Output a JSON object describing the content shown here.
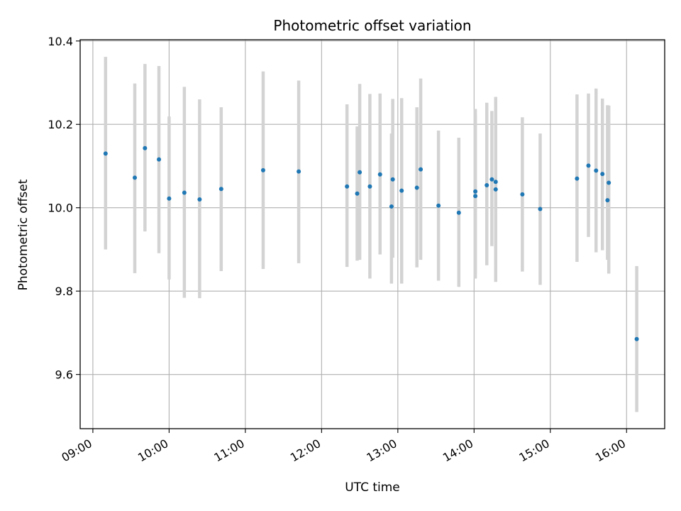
{
  "chart_data": {
    "type": "scatter",
    "title": "Photometric offset variation",
    "xlabel": "UTC time",
    "ylabel": "Photometric offset",
    "xlim": [
      "08:50",
      "16:30"
    ],
    "ylim": [
      9.47,
      10.403
    ],
    "grid": true,
    "x_ticks": [
      "09:00",
      "10:00",
      "11:00",
      "12:00",
      "13:00",
      "14:00",
      "15:00",
      "16:00"
    ],
    "y_ticks": [
      9.6,
      9.8,
      10.0,
      10.2,
      10.4
    ],
    "y_tick_labels": [
      "9.6",
      "9.8",
      "10.0",
      "10.2",
      "10.4"
    ],
    "marker_color": "#1f77b4",
    "errorbar_color": "#d3d3d3",
    "points": [
      {
        "t": "09:10",
        "y": 10.13,
        "lo": 9.9,
        "hi": 10.362
      },
      {
        "t": "09:33",
        "y": 10.072,
        "lo": 9.843,
        "hi": 10.298
      },
      {
        "t": "09:41",
        "y": 10.143,
        "lo": 9.943,
        "hi": 10.345
      },
      {
        "t": "09:52",
        "y": 10.116,
        "lo": 9.891,
        "hi": 10.34
      },
      {
        "t": "10:00",
        "y": 10.022,
        "lo": 9.828,
        "hi": 10.219
      },
      {
        "t": "10:12",
        "y": 10.036,
        "lo": 9.784,
        "hi": 10.29
      },
      {
        "t": "10:24",
        "y": 10.02,
        "lo": 9.783,
        "hi": 10.26
      },
      {
        "t": "10:41",
        "y": 10.045,
        "lo": 9.848,
        "hi": 10.241
      },
      {
        "t": "11:14",
        "y": 10.09,
        "lo": 9.853,
        "hi": 10.327
      },
      {
        "t": "11:42",
        "y": 10.087,
        "lo": 9.867,
        "hi": 10.305
      },
      {
        "t": "12:20",
        "y": 10.051,
        "lo": 9.858,
        "hi": 10.248
      },
      {
        "t": "12:28",
        "y": 10.034,
        "lo": 9.873,
        "hi": 10.195
      },
      {
        "t": "12:30",
        "y": 10.085,
        "lo": 9.875,
        "hi": 10.297
      },
      {
        "t": "12:38",
        "y": 10.051,
        "lo": 9.83,
        "hi": 10.273
      },
      {
        "t": "12:46",
        "y": 10.08,
        "lo": 9.888,
        "hi": 10.274
      },
      {
        "t": "12:55",
        "y": 10.003,
        "lo": 9.818,
        "hi": 10.178
      },
      {
        "t": "12:56",
        "y": 10.068,
        "lo": 9.88,
        "hi": 10.261
      },
      {
        "t": "13:03",
        "y": 10.041,
        "lo": 9.818,
        "hi": 10.263
      },
      {
        "t": "13:15",
        "y": 10.048,
        "lo": 9.857,
        "hi": 10.241
      },
      {
        "t": "13:18",
        "y": 10.092,
        "lo": 9.875,
        "hi": 10.31
      },
      {
        "t": "13:32",
        "y": 10.005,
        "lo": 9.825,
        "hi": 10.185
      },
      {
        "t": "13:48",
        "y": 9.988,
        "lo": 9.81,
        "hi": 10.168
      },
      {
        "t": "14:01",
        "y": 10.039,
        "lo": 9.842,
        "hi": 10.237
      },
      {
        "t": "14:01",
        "y": 10.028,
        "lo": 9.83,
        "hi": 10.222
      },
      {
        "t": "14:10",
        "y": 10.054,
        "lo": 9.862,
        "hi": 10.252
      },
      {
        "t": "14:14",
        "y": 10.068,
        "lo": 9.908,
        "hi": 10.232
      },
      {
        "t": "14:17",
        "y": 10.044,
        "lo": 9.822,
        "hi": 10.266
      },
      {
        "t": "14:17",
        "y": 10.062,
        "lo": 9.862,
        "hi": 10.262
      },
      {
        "t": "14:38",
        "y": 10.032,
        "lo": 9.847,
        "hi": 10.217
      },
      {
        "t": "14:52",
        "y": 9.997,
        "lo": 9.815,
        "hi": 10.178
      },
      {
        "t": "15:21",
        "y": 10.07,
        "lo": 9.87,
        "hi": 10.272
      },
      {
        "t": "15:30",
        "y": 10.101,
        "lo": 9.93,
        "hi": 10.274
      },
      {
        "t": "15:36",
        "y": 10.089,
        "lo": 9.893,
        "hi": 10.286
      },
      {
        "t": "15:41",
        "y": 10.081,
        "lo": 9.898,
        "hi": 10.262
      },
      {
        "t": "15:45",
        "y": 10.018,
        "lo": 9.875,
        "hi": 10.246
      },
      {
        "t": "15:46",
        "y": 10.06,
        "lo": 9.842,
        "hi": 10.245
      },
      {
        "t": "16:08",
        "y": 9.685,
        "lo": 9.51,
        "hi": 9.86
      }
    ]
  }
}
